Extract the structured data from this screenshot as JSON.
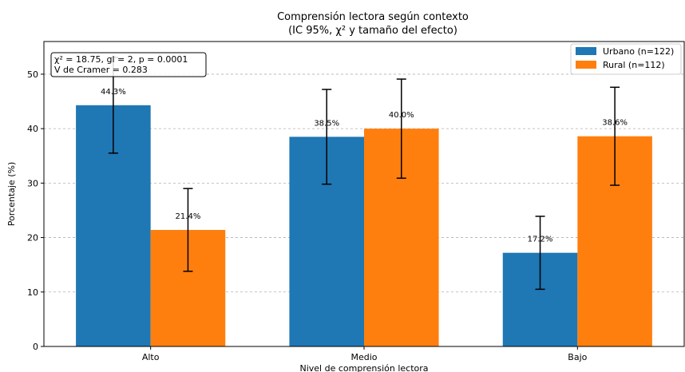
{
  "chart_data": {
    "type": "bar",
    "title": "Comprensión lectora según contexto",
    "subtitle": "(IC 95%, χ² y tamaño del efecto)",
    "xlabel": "Nivel de comprensión lectora",
    "ylabel": "Porcentaje (%)",
    "categories": [
      "Alto",
      "Medio",
      "Bajo"
    ],
    "ylim": [
      0,
      56
    ],
    "yticks": [
      0,
      10,
      20,
      30,
      40,
      50
    ],
    "grid": "horizontal dashed",
    "legend_position": "top-right",
    "series": [
      {
        "name": "Urbano (n=122)",
        "color": "#1f77b4",
        "values": [
          44.3,
          38.5,
          17.2
        ],
        "labels": [
          "44.3%",
          "38.5%",
          "17.2%"
        ],
        "ci_low": [
          35.5,
          29.8,
          10.5
        ],
        "ci_high": [
          53.1,
          47.2,
          23.9
        ]
      },
      {
        "name": "Rural (n=112)",
        "color": "#ff7f0e",
        "values": [
          21.4,
          40.0,
          38.6
        ],
        "labels": [
          "21.4%",
          "40.0%",
          "38.6%"
        ],
        "ci_low": [
          13.8,
          30.9,
          29.6
        ],
        "ci_high": [
          29.0,
          49.1,
          47.6
        ]
      }
    ],
    "annotation": [
      "χ² = 18.75, gl = 2, p = 0.0001",
      "V de Cramer = 0.283"
    ]
  }
}
